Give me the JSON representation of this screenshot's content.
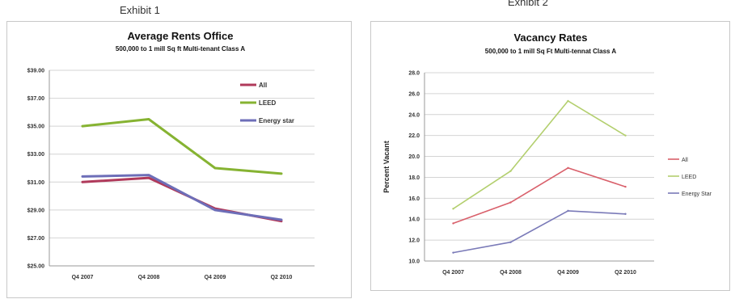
{
  "exhibit_labels": [
    "Exhibit 1",
    "Exhibit 2"
  ],
  "chart_data": [
    {
      "type": "line",
      "title": "Average Rents Office",
      "subtitle": "500,000 to 1 mill Sq ft Multi-tenant Class A",
      "xlabel": "",
      "ylabel": "",
      "categories": [
        "Q4 2007",
        "Q4 2008",
        "Q4 2009",
        "Q2 2010"
      ],
      "y_ticks": [
        "$25.00",
        "$27.00",
        "$29.00",
        "$31.00",
        "$33.00",
        "$35.00",
        "$37.00",
        "$39.00"
      ],
      "ylim": [
        25,
        39
      ],
      "grid": true,
      "legend_position": "top-right",
      "series": [
        {
          "name": "All",
          "values": [
            31.0,
            31.3,
            29.1,
            28.2
          ],
          "color": "#b03a5b"
        },
        {
          "name": "LEED",
          "values": [
            35.0,
            35.5,
            32.0,
            31.6
          ],
          "color": "#86b332"
        },
        {
          "name": "Energy star",
          "values": [
            31.4,
            31.5,
            29.0,
            28.3
          ],
          "color": "#6d6eb8"
        }
      ]
    },
    {
      "type": "line",
      "title": "Vacancy Rates",
      "subtitle": "500,000 to 1 mill Sq Ft Multi-tennat Class A",
      "xlabel": "",
      "ylabel": "Percent Vacant",
      "categories": [
        "Q4 2007",
        "Q4 2008",
        "Q4 2009",
        "Q2 2010"
      ],
      "y_ticks": [
        "10.0",
        "12.0",
        "14.0",
        "16.0",
        "18.0",
        "20.0",
        "22.0",
        "24.0",
        "26.0",
        "28.0"
      ],
      "ylim": [
        10,
        28
      ],
      "grid": true,
      "legend_position": "right",
      "series": [
        {
          "name": "All",
          "values": [
            13.6,
            15.6,
            18.9,
            17.1
          ],
          "color": "#d9606b"
        },
        {
          "name": "LEED",
          "values": [
            15.0,
            18.6,
            25.3,
            22.0
          ],
          "color": "#b3cf6e"
        },
        {
          "name": "Energy Star",
          "values": [
            10.8,
            11.8,
            14.8,
            14.5
          ],
          "color": "#7a7ab8"
        }
      ]
    }
  ]
}
